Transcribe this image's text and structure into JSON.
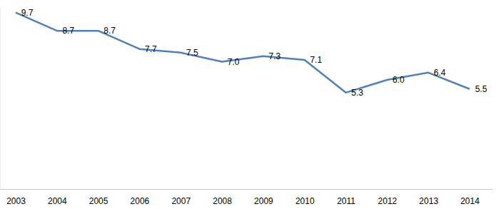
{
  "chart_data": {
    "type": "line",
    "categories": [
      "2003",
      "2004",
      "2005",
      "2006",
      "2007",
      "2008",
      "2009",
      "2010",
      "2011",
      "2012",
      "2013",
      "2014"
    ],
    "values": [
      9.7,
      8.7,
      8.7,
      7.7,
      7.5,
      7.0,
      7.3,
      7.1,
      5.3,
      6.0,
      6.4,
      5.5
    ],
    "value_labels": [
      "9.7",
      "8.7",
      "8.7",
      "7.7",
      "7.5",
      "7.0",
      "7.3",
      "7.1",
      "5.3",
      "6.0",
      "6.4",
      "5.5"
    ],
    "color": "#4f81bd",
    "ylim": [
      0,
      10
    ],
    "grid": false,
    "data_labels": true,
    "tick_labels": "x"
  }
}
